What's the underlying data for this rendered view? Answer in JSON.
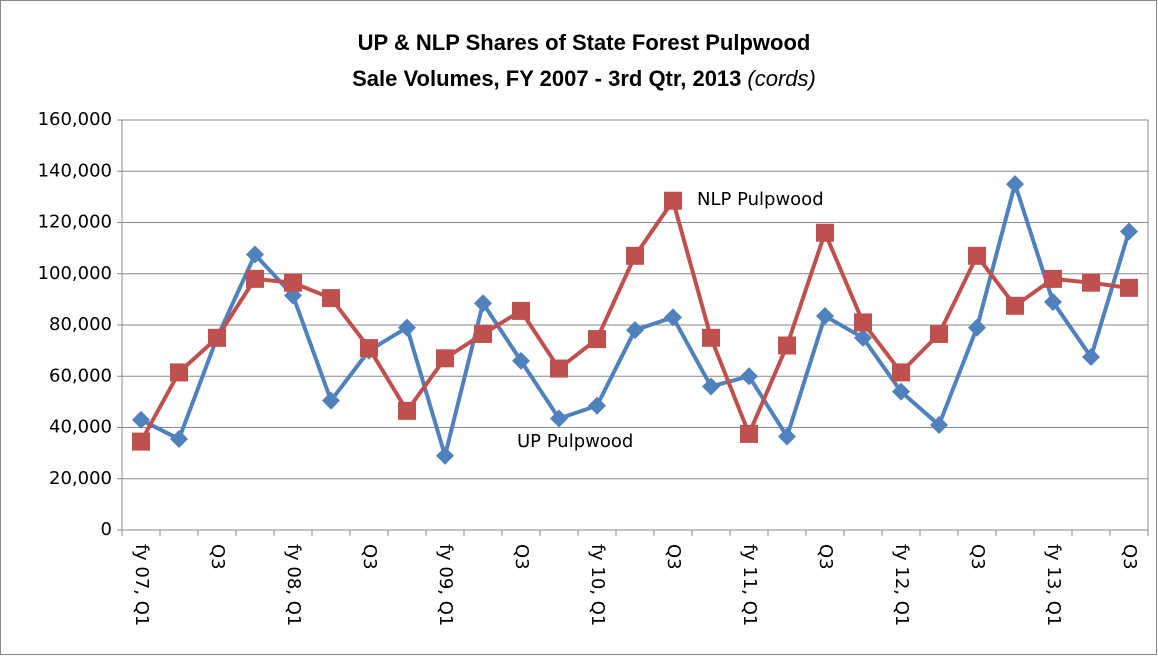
{
  "chart_data": {
    "type": "line",
    "title": [
      "UP & NLP Shares of State Forest Pulpwood",
      "Sale Volumes, FY 2007 - 3rd Qtr, 2013",
      "(cords)"
    ],
    "categories": [
      "fy 07, Q1",
      null,
      "Q3",
      null,
      "fy 08, Q1",
      null,
      "Q3",
      null,
      "fy 09, Q1",
      null,
      "Q3",
      null,
      "fy 10, Q1",
      null,
      "Q3",
      null,
      "fy 11, Q1",
      null,
      "Q3",
      null,
      "fy 12, Q1",
      null,
      "Q3",
      null,
      "fy 13, Q1",
      null,
      "Q3"
    ],
    "series": [
      {
        "name": "UP Pulpwood",
        "color": "#4f81bd",
        "marker": "diamond",
        "values": [
          43000,
          35500,
          75000,
          107500,
          91500,
          50500,
          70000,
          79000,
          29000,
          88500,
          66000,
          43500,
          48500,
          78000,
          83000,
          56000,
          60000,
          36500,
          83500,
          75000,
          54000,
          41000,
          79000,
          135000,
          89000,
          67500,
          116500
        ]
      },
      {
        "name": "NLP Pulpwood",
        "color": "#c0504d",
        "marker": "square",
        "values": [
          34500,
          61500,
          75000,
          98000,
          96500,
          90500,
          71000,
          46500,
          67000,
          76500,
          85500,
          63000,
          74500,
          107000,
          128500,
          75000,
          37500,
          72000,
          116000,
          81000,
          61500,
          76500,
          107000,
          87500,
          98000,
          96500,
          94500
        ]
      }
    ],
    "ylim": [
      0,
      160000
    ],
    "yticks": [
      0,
      {
        "value": 20000,
        "label": "20,000"
      },
      {
        "value": 40000,
        "label": "40,000"
      },
      {
        "value": 60000,
        "label": "60,000"
      },
      {
        "value": 80000,
        "label": "80,000"
      },
      {
        "value": 100000,
        "label": "100,000"
      },
      {
        "value": 120000,
        "label": "120,000"
      },
      {
        "value": 140000,
        "label": "140,000"
      },
      {
        "value": 160000,
        "label": "160,000"
      }
    ],
    "grid": true
  }
}
